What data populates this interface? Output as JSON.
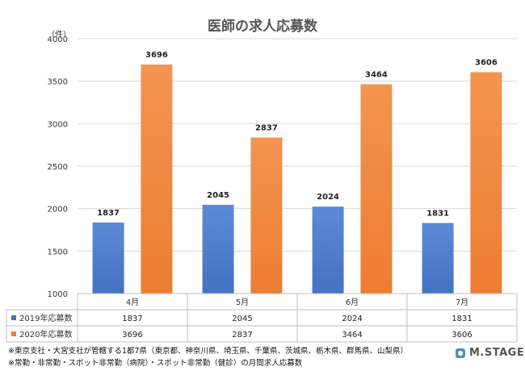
{
  "chart_data": {
    "type": "bar",
    "title": "医師の求人応募数",
    "unit": "（件）",
    "categories": [
      "4月",
      "5月",
      "6月",
      "7月"
    ],
    "series": [
      {
        "name": "2019年応募数",
        "values": [
          1837,
          2045,
          2024,
          1831
        ],
        "color": "#4472C4"
      },
      {
        "name": "2020年応募数",
        "values": [
          3696,
          2837,
          3464,
          3606
        ],
        "color": "#ED7D31"
      }
    ],
    "ylim": [
      1000,
      4000
    ],
    "yticks": [
      "1000",
      "1500",
      "2000",
      "2500",
      "3000",
      "3500",
      "4000"
    ],
    "grid": true,
    "legend": "data-table"
  },
  "notes": [
    "※東京支社・大宮支社が管轄する1都7県（東京都、神奈川県、埼玉県、千葉県、茨城県、栃木県、群馬県、山梨県）",
    "※常勤・非常勤・スポット非常勤（病院）・スポット非常勤（健診）の月間求人応募数"
  ],
  "logo": {
    "text": "M.STAGE"
  }
}
